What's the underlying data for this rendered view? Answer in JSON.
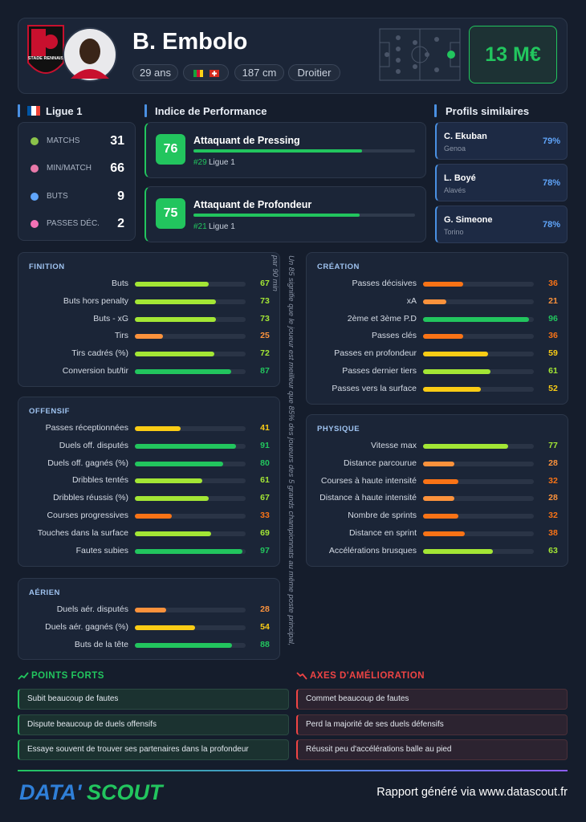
{
  "header": {
    "club_logo_text": "STADE RENNAIS",
    "name": "B. Embolo",
    "tags": [
      "29 ans",
      "187 cm",
      "Droitier"
    ],
    "market_value": "13 M€"
  },
  "league": {
    "title": "Ligue 1",
    "stats": [
      {
        "label": "MATCHS",
        "value": 31
      },
      {
        "label": "MIN/MATCH",
        "value": 66
      },
      {
        "label": "BUTS",
        "value": 9
      },
      {
        "label": "PASSES DÉC.",
        "value": 2
      }
    ]
  },
  "performance": {
    "title": "Indice de Performance",
    "items": [
      {
        "score": 76,
        "name": "Attaquant de Pressing",
        "rank": "#29",
        "league": "Ligue 1"
      },
      {
        "score": 75,
        "name": "Attaquant de Profondeur",
        "rank": "#21",
        "league": "Ligue 1"
      }
    ]
  },
  "similar": {
    "title": "Profils similaires",
    "items": [
      {
        "name": "C. Ekuban",
        "club": "Genoa",
        "similarity": "79%"
      },
      {
        "name": "L. Boyé",
        "club": "Alavés",
        "similarity": "78%"
      },
      {
        "name": "G. Simeone",
        "club": "Torino",
        "similarity": "78%"
      }
    ]
  },
  "sections": [
    {
      "title": "FINITION",
      "rows": [
        {
          "label": "Buts",
          "value": 67
        },
        {
          "label": "Buts hors penalty",
          "value": 73
        },
        {
          "label": "Buts - xG",
          "value": 73
        },
        {
          "label": "Tirs",
          "value": 25
        },
        {
          "label": "Tirs cadrés (%)",
          "value": 72
        },
        {
          "label": "Conversion but/tir",
          "value": 87
        }
      ]
    },
    {
      "title": "OFFENSIF",
      "rows": [
        {
          "label": "Passes réceptionnées",
          "value": 41
        },
        {
          "label": "Duels off. disputés",
          "value": 91
        },
        {
          "label": "Duels off. gagnés (%)",
          "value": 80
        },
        {
          "label": "Dribbles tentés",
          "value": 61
        },
        {
          "label": "Dribbles réussis (%)",
          "value": 67
        },
        {
          "label": "Courses progressives",
          "value": 33
        },
        {
          "label": "Touches dans la surface",
          "value": 69
        },
        {
          "label": "Fautes subies",
          "value": 97
        }
      ]
    },
    {
      "title": "AÉRIEN",
      "rows": [
        {
          "label": "Duels aér. disputés",
          "value": 28
        },
        {
          "label": "Duels aér. gagnés (%)",
          "value": 54
        },
        {
          "label": "Buts de la tête",
          "value": 88
        }
      ]
    },
    {
      "title": "CRÉATION",
      "rows": [
        {
          "label": "Passes décisives",
          "value": 36
        },
        {
          "label": "xA",
          "value": 21
        },
        {
          "label": "2ème et 3ème P.D",
          "value": 96
        },
        {
          "label": "Passes clés",
          "value": 36
        },
        {
          "label": "Passes en profondeur",
          "value": 59
        },
        {
          "label": "Passes dernier tiers",
          "value": 61
        },
        {
          "label": "Passes vers la surface",
          "value": 52
        }
      ]
    },
    {
      "title": "PHYSIQUE",
      "rows": [
        {
          "label": "Vitesse max",
          "value": 77
        },
        {
          "label": "Distance parcourue",
          "value": 28
        },
        {
          "label": "Courses à haute intensité",
          "value": 32
        },
        {
          "label": "Distance à haute intensité",
          "value": 28
        },
        {
          "label": "Nombre de sprints",
          "value": 32
        },
        {
          "label": "Distance en sprint",
          "value": 38
        },
        {
          "label": "Accélérations brusques",
          "value": 63
        }
      ]
    }
  ],
  "note": "Un 85 signifie que le joueur est meilleur que 85% des joueurs des 5 grands championnats au même poste principal, par 90 min",
  "strengths": {
    "title": "POINTS FORTS",
    "items": [
      "Subit beaucoup de fautes",
      "Dispute beaucoup de duels offensifs",
      "Essaye souvent de trouver ses partenaires dans la profondeur"
    ]
  },
  "improvements": {
    "title": "AXES D'AMÉLIORATION",
    "items": [
      "Commet beaucoup de fautes",
      "Perd la majorité de ses duels défensifs",
      "Réussit peu d'accélérations balle au pied"
    ]
  },
  "footer": {
    "brand_left": "DATA'",
    "brand_right": "SCOUT",
    "credit": "Rapport généré via www.datascout.fr"
  }
}
